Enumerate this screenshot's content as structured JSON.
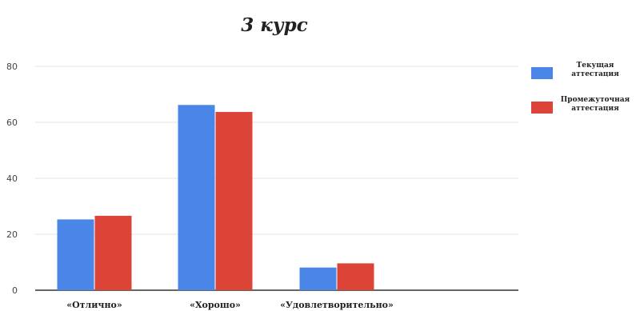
{
  "chart_data": {
    "type": "bar",
    "title": "3 курс",
    "categories": [
      "«Отлично»",
      "«Хорошо»",
      "«Удовлетворительно»"
    ],
    "series": [
      {
        "name": "Текущая аттестация",
        "values": [
          25.3,
          66.2,
          8.1
        ],
        "color": "#4a86e8"
      },
      {
        "name": "Промежуточная аттестация",
        "values": [
          26.6,
          63.7,
          9.6
        ],
        "color": "#db4437"
      }
    ],
    "ylim": [
      0,
      80
    ],
    "yticks": [
      0,
      20,
      40,
      60,
      80
    ],
    "grid": true,
    "legend": "right"
  },
  "legend": {
    "items": [
      {
        "lines": [
          "Текущая",
          "аттестация"
        ]
      },
      {
        "lines": [
          "Промежуточная",
          "аттестация"
        ]
      }
    ]
  }
}
